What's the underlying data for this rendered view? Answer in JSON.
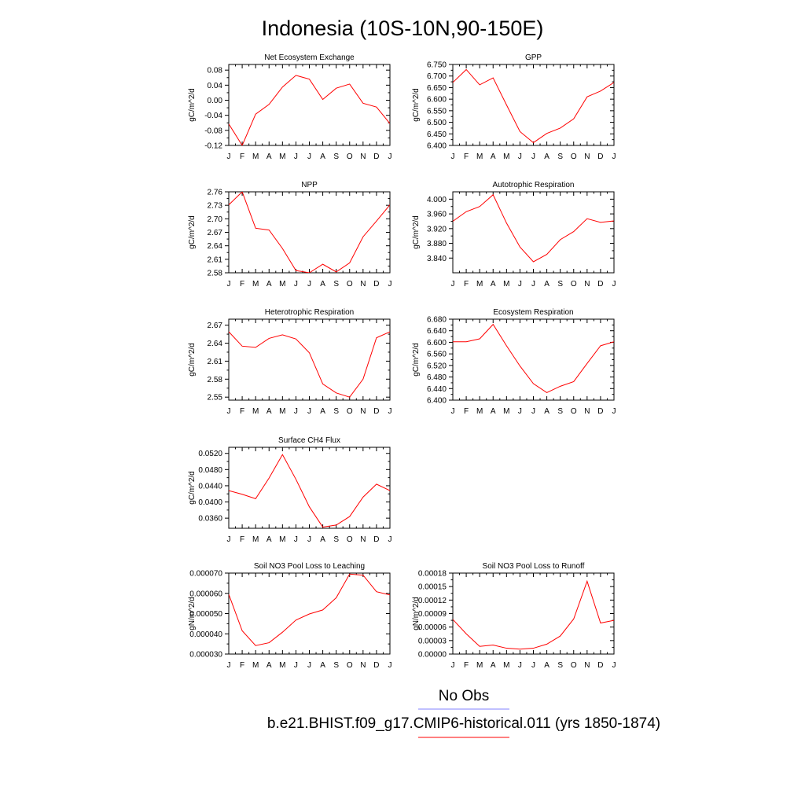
{
  "figure": {
    "title": "Indonesia (10S-10N,90-150E)",
    "series_color": "#ff0000",
    "obs_color": "#8080ff"
  },
  "legend": {
    "obs_label": "No Obs",
    "model_label": "b.e21.BHIST.f09_g17.CMIP6-historical.011 (yrs 1850-1874)"
  },
  "chart_data": [
    {
      "id": "nee",
      "type": "line",
      "title": "Net Ecosystem Exchange",
      "ylabel": "gC/m^2/d",
      "categories": [
        "J",
        "F",
        "M",
        "A",
        "M",
        "J",
        "J",
        "A",
        "S",
        "O",
        "N",
        "D",
        "J"
      ],
      "values": [
        -0.063,
        -0.12,
        -0.037,
        -0.011,
        0.035,
        0.066,
        0.056,
        0.002,
        0.032,
        0.043,
        -0.008,
        -0.018,
        -0.062
      ],
      "ylim": [
        -0.12,
        0.095
      ],
      "yticks": [
        -0.12,
        -0.08,
        -0.04,
        0.0,
        0.04,
        0.08
      ],
      "ytick_labels": [
        "-0.12",
        "-0.08",
        "-0.04",
        "0.00",
        "0.04",
        "0.08"
      ]
    },
    {
      "id": "gpp",
      "type": "line",
      "title": "GPP",
      "ylabel": "gC/m^2/d",
      "categories": [
        "J",
        "F",
        "M",
        "A",
        "M",
        "J",
        "J",
        "A",
        "S",
        "O",
        "N",
        "D",
        "J"
      ],
      "values": [
        6.672,
        6.728,
        6.662,
        6.692,
        6.575,
        6.46,
        6.412,
        6.452,
        6.475,
        6.515,
        6.61,
        6.635,
        6.672
      ],
      "ylim": [
        6.4,
        6.75
      ],
      "yticks": [
        6.4,
        6.45,
        6.5,
        6.55,
        6.6,
        6.65,
        6.7,
        6.75
      ],
      "ytick_labels": [
        "6.400",
        "6.450",
        "6.500",
        "6.550",
        "6.600",
        "6.650",
        "6.700",
        "6.750"
      ]
    },
    {
      "id": "npp",
      "type": "line",
      "title": "NPP",
      "ylabel": "gC/m^2/d",
      "categories": [
        "J",
        "F",
        "M",
        "A",
        "M",
        "J",
        "J",
        "A",
        "S",
        "O",
        "N",
        "D",
        "J"
      ],
      "values": [
        2.731,
        2.76,
        2.679,
        2.675,
        2.634,
        2.585,
        2.58,
        2.599,
        2.582,
        2.602,
        2.66,
        2.695,
        2.731
      ],
      "ylim": [
        2.58,
        2.76
      ],
      "yticks": [
        2.58,
        2.61,
        2.64,
        2.67,
        2.7,
        2.73,
        2.76
      ],
      "ytick_labels": [
        "2.58",
        "2.61",
        "2.64",
        "2.67",
        "2.70",
        "2.73",
        "2.76"
      ]
    },
    {
      "id": "ar",
      "type": "line",
      "title": "Autotrophic Respiration",
      "ylabel": "gC/m^2/d",
      "categories": [
        "J",
        "F",
        "M",
        "A",
        "M",
        "J",
        "J",
        "A",
        "S",
        "O",
        "N",
        "D",
        "J"
      ],
      "values": [
        3.94,
        3.966,
        3.98,
        4.012,
        3.935,
        3.87,
        3.83,
        3.85,
        3.89,
        3.912,
        3.947,
        3.937,
        3.941
      ],
      "ylim": [
        3.8,
        4.02
      ],
      "yticks": [
        3.84,
        3.88,
        3.92,
        3.96,
        4.0
      ],
      "ytick_labels": [
        "3.840",
        "3.880",
        "3.920",
        "3.960",
        "4.000"
      ]
    },
    {
      "id": "hr",
      "type": "line",
      "title": "Heterotrophic Respiration",
      "ylabel": "gC/m^2/d",
      "categories": [
        "J",
        "F",
        "M",
        "A",
        "M",
        "J",
        "J",
        "A",
        "S",
        "O",
        "N",
        "D",
        "J"
      ],
      "values": [
        2.659,
        2.635,
        2.633,
        2.648,
        2.654,
        2.647,
        2.624,
        2.572,
        2.557,
        2.55,
        2.58,
        2.649,
        2.659
      ],
      "ylim": [
        2.545,
        2.68
      ],
      "yticks": [
        2.55,
        2.58,
        2.61,
        2.64,
        2.67
      ],
      "ytick_labels": [
        "2.55",
        "2.58",
        "2.61",
        "2.64",
        "2.67"
      ]
    },
    {
      "id": "er",
      "type": "line",
      "title": "Ecosystem Respiration",
      "ylabel": "gC/m^2/d",
      "categories": [
        "J",
        "F",
        "M",
        "A",
        "M",
        "J",
        "J",
        "A",
        "S",
        "O",
        "N",
        "D",
        "J"
      ],
      "values": [
        6.602,
        6.602,
        6.612,
        6.662,
        6.588,
        6.518,
        6.457,
        6.426,
        6.448,
        6.464,
        6.527,
        6.588,
        6.602
      ],
      "ylim": [
        6.4,
        6.68
      ],
      "yticks": [
        6.4,
        6.44,
        6.48,
        6.52,
        6.56,
        6.6,
        6.64,
        6.68
      ],
      "ytick_labels": [
        "6.400",
        "6.440",
        "6.480",
        "6.520",
        "6.560",
        "6.600",
        "6.640",
        "6.680"
      ]
    },
    {
      "id": "ch4",
      "type": "line",
      "title": "Surface CH4 Flux",
      "ylabel": "gC/m^2/d",
      "categories": [
        "J",
        "F",
        "M",
        "A",
        "M",
        "J",
        "J",
        "A",
        "S",
        "O",
        "N",
        "D",
        "J"
      ],
      "values": [
        0.0428,
        0.0419,
        0.0408,
        0.0459,
        0.0517,
        0.0456,
        0.0388,
        0.0338,
        0.0343,
        0.0364,
        0.0412,
        0.0444,
        0.0428
      ],
      "ylim": [
        0.0335,
        0.0535
      ],
      "yticks": [
        0.036,
        0.04,
        0.044,
        0.048,
        0.052
      ],
      "ytick_labels": [
        "0.0360",
        "0.0400",
        "0.0440",
        "0.0480",
        "0.0520"
      ]
    },
    {
      "id": "no3leach",
      "type": "line",
      "title": "Soil NO3 Pool Loss to Leaching",
      "ylabel": "gN/m^2/d",
      "categories": [
        "J",
        "F",
        "M",
        "A",
        "M",
        "J",
        "J",
        "A",
        "S",
        "O",
        "N",
        "D",
        "J"
      ],
      "values": [
        5.95e-05,
        4.15e-05,
        3.42e-05,
        3.56e-05,
        4.08e-05,
        4.68e-05,
        4.98e-05,
        5.18e-05,
        5.78e-05,
        6.95e-05,
        6.9e-05,
        6.08e-05,
        5.92e-05
      ],
      "ylim": [
        3e-05,
        7e-05
      ],
      "yticks": [
        3e-05,
        4e-05,
        5e-05,
        6e-05,
        7e-05
      ],
      "ytick_labels": [
        "0.000030",
        "0.000040",
        "0.000050",
        "0.000060",
        "0.000070"
      ]
    },
    {
      "id": "no3runoff",
      "type": "line",
      "title": "Soil NO3 Pool Loss to Runoff",
      "ylabel": "gN/m^2/d",
      "categories": [
        "J",
        "F",
        "M",
        "A",
        "M",
        "J",
        "J",
        "A",
        "S",
        "O",
        "N",
        "D",
        "J"
      ],
      "values": [
        7.7e-05,
        4.5e-05,
        1.7e-05,
        2e-05,
        1.3e-05,
        1.1e-05,
        1.3e-05,
        2.2e-05,
        4e-05,
        7.8e-05,
        0.000162,
        6.9e-05,
        7.5e-05
      ],
      "ylim": [
        0.0,
        0.00018
      ],
      "yticks": [
        0.0,
        3e-05,
        6e-05,
        9e-05,
        0.00012,
        0.00015,
        0.00018
      ],
      "ytick_labels": [
        "0.00000",
        "0.00003",
        "0.00006",
        "0.00009",
        "0.00012",
        "0.00015",
        "0.00018"
      ]
    }
  ]
}
